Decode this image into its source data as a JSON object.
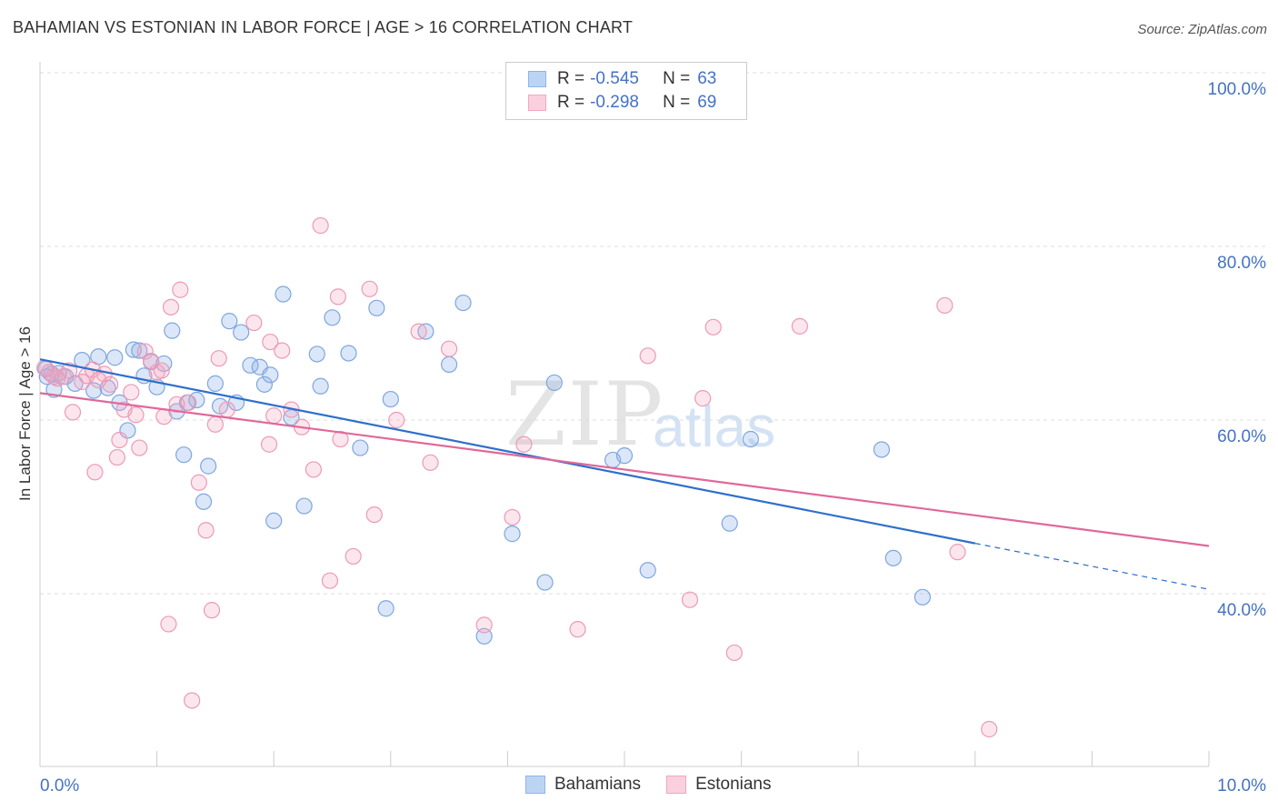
{
  "title": "BAHAMIAN VS ESTONIAN IN LABOR FORCE | AGE > 16 CORRELATION CHART",
  "source": "Source: ZipAtlas.com",
  "watermark": {
    "zip": "ZIP",
    "atlas": "atlas"
  },
  "legend": {
    "rows": [
      {
        "r_label": "R =",
        "r_value": "-0.545",
        "n_label": "N =",
        "n_value": "63"
      },
      {
        "r_label": "R =",
        "r_value": "-0.298",
        "n_label": "N =",
        "n_value": "69"
      }
    ]
  },
  "chart_data": {
    "type": "scatter",
    "title": "BAHAMIAN VS ESTONIAN IN LABOR FORCE | AGE > 16 CORRELATION CHART",
    "xlabel": "",
    "ylabel": "In Labor Force | Age > 16",
    "xlim": [
      0,
      10
    ],
    "ylim": [
      22,
      102
    ],
    "x_tick_labels": [
      "0.0%",
      "10.0%"
    ],
    "y_ticks": [
      40,
      60,
      80,
      100
    ],
    "y_tick_labels": [
      "40.0%",
      "60.0%",
      "80.0%",
      "100.0%"
    ],
    "grid": true,
    "legend_position": "top-center",
    "series": [
      {
        "name": "Bahamians",
        "color": "#8fb4e8",
        "line_color": "#2e6fcc",
        "r": -0.545,
        "n": 63,
        "trend": {
          "x0": 0,
          "y0": 67.0,
          "x1": 8,
          "y1": 45.8,
          "dash_to_x": 10,
          "dash_to_y": 40.5
        },
        "points": [
          [
            0.05,
            65.9
          ],
          [
            0.1,
            65.3
          ],
          [
            0.12,
            63.5
          ],
          [
            0.22,
            65.0
          ],
          [
            0.3,
            64.2
          ],
          [
            0.36,
            66.9
          ],
          [
            0.46,
            63.4
          ],
          [
            0.5,
            67.3
          ],
          [
            0.58,
            63.7
          ],
          [
            0.64,
            67.2
          ],
          [
            0.68,
            62.0
          ],
          [
            0.75,
            58.8
          ],
          [
            0.8,
            68.1
          ],
          [
            0.85,
            68.0
          ],
          [
            0.89,
            65.1
          ],
          [
            0.95,
            66.7
          ],
          [
            1.0,
            63.8
          ],
          [
            1.06,
            66.5
          ],
          [
            1.13,
            70.3
          ],
          [
            1.17,
            61.0
          ],
          [
            1.23,
            56.0
          ],
          [
            1.26,
            62.0
          ],
          [
            1.34,
            62.3
          ],
          [
            1.4,
            50.6
          ],
          [
            1.44,
            54.7
          ],
          [
            1.5,
            64.2
          ],
          [
            1.54,
            61.6
          ],
          [
            1.62,
            71.4
          ],
          [
            1.68,
            62.0
          ],
          [
            1.72,
            70.1
          ],
          [
            1.8,
            66.3
          ],
          [
            1.88,
            66.1
          ],
          [
            1.92,
            64.1
          ],
          [
            1.97,
            65.2
          ],
          [
            2.0,
            48.4
          ],
          [
            2.08,
            74.5
          ],
          [
            2.15,
            60.3
          ],
          [
            2.26,
            50.1
          ],
          [
            2.37,
            67.6
          ],
          [
            2.4,
            63.9
          ],
          [
            2.5,
            71.8
          ],
          [
            2.64,
            67.7
          ],
          [
            2.74,
            56.8
          ],
          [
            2.88,
            72.9
          ],
          [
            2.96,
            38.3
          ],
          [
            3.0,
            62.4
          ],
          [
            3.3,
            70.2
          ],
          [
            3.5,
            66.4
          ],
          [
            3.62,
            73.5
          ],
          [
            3.8,
            35.1
          ],
          [
            4.04,
            46.9
          ],
          [
            4.32,
            41.3
          ],
          [
            4.4,
            64.3
          ],
          [
            4.9,
            55.4
          ],
          [
            5.0,
            55.9
          ],
          [
            5.2,
            42.7
          ],
          [
            5.9,
            48.1
          ],
          [
            6.08,
            57.8
          ],
          [
            7.2,
            56.6
          ],
          [
            7.3,
            44.1
          ],
          [
            7.55,
            39.6
          ],
          [
            0.06,
            65.0
          ],
          [
            0.16,
            65.4
          ]
        ]
      },
      {
        "name": "Estonians",
        "color": "#f3a6bf",
        "line_color": "#e0689a",
        "r": -0.298,
        "n": 69,
        "trend": {
          "x0": 0,
          "y0": 63.1,
          "x1": 10,
          "y1": 45.5
        },
        "points": [
          [
            0.04,
            66.0
          ],
          [
            0.08,
            65.5
          ],
          [
            0.15,
            64.8
          ],
          [
            0.25,
            65.7
          ],
          [
            0.28,
            60.9
          ],
          [
            0.36,
            64.4
          ],
          [
            0.4,
            65.1
          ],
          [
            0.45,
            65.8
          ],
          [
            0.47,
            54.0
          ],
          [
            0.55,
            65.3
          ],
          [
            0.6,
            64.1
          ],
          [
            0.66,
            55.7
          ],
          [
            0.68,
            57.7
          ],
          [
            0.72,
            61.2
          ],
          [
            0.78,
            63.2
          ],
          [
            0.82,
            60.6
          ],
          [
            0.85,
            56.8
          ],
          [
            0.9,
            67.9
          ],
          [
            0.95,
            66.8
          ],
          [
            1.0,
            65.5
          ],
          [
            1.04,
            65.7
          ],
          [
            1.06,
            60.4
          ],
          [
            1.1,
            36.5
          ],
          [
            1.12,
            73.0
          ],
          [
            1.17,
            61.8
          ],
          [
            1.2,
            75.0
          ],
          [
            1.27,
            62.0
          ],
          [
            1.3,
            27.7
          ],
          [
            1.36,
            52.8
          ],
          [
            1.42,
            47.3
          ],
          [
            1.47,
            38.1
          ],
          [
            1.5,
            59.5
          ],
          [
            1.53,
            67.1
          ],
          [
            1.6,
            61.2
          ],
          [
            1.83,
            71.2
          ],
          [
            1.96,
            57.2
          ],
          [
            1.97,
            69.0
          ],
          [
            2.0,
            60.5
          ],
          [
            2.07,
            68.0
          ],
          [
            2.15,
            61.2
          ],
          [
            2.24,
            59.2
          ],
          [
            2.34,
            54.3
          ],
          [
            2.4,
            82.4
          ],
          [
            2.48,
            41.5
          ],
          [
            2.55,
            74.2
          ],
          [
            2.57,
            57.8
          ],
          [
            2.68,
            44.3
          ],
          [
            2.82,
            75.1
          ],
          [
            2.86,
            49.1
          ],
          [
            3.05,
            60.0
          ],
          [
            3.24,
            70.2
          ],
          [
            3.34,
            55.1
          ],
          [
            3.5,
            68.2
          ],
          [
            3.8,
            36.4
          ],
          [
            4.04,
            48.8
          ],
          [
            4.14,
            57.2
          ],
          [
            4.6,
            35.9
          ],
          [
            5.2,
            67.4
          ],
          [
            5.56,
            39.3
          ],
          [
            5.67,
            62.5
          ],
          [
            5.76,
            70.7
          ],
          [
            5.94,
            33.2
          ],
          [
            6.5,
            70.8
          ],
          [
            7.74,
            73.2
          ],
          [
            7.85,
            44.8
          ],
          [
            8.12,
            24.4
          ],
          [
            0.12,
            65.0
          ],
          [
            0.2,
            65.0
          ],
          [
            0.5,
            64.6
          ]
        ]
      }
    ]
  }
}
